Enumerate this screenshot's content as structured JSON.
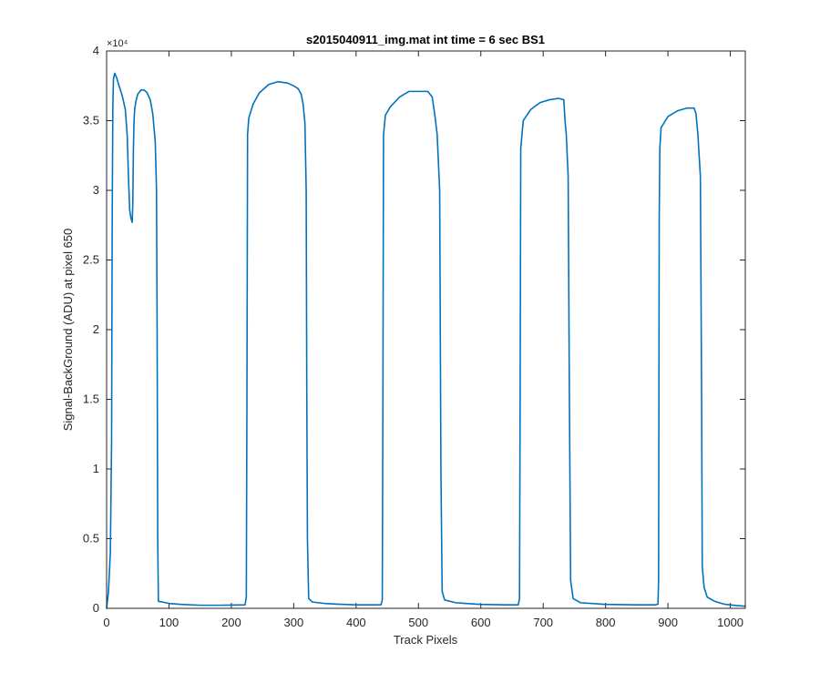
{
  "chart_data": {
    "type": "line",
    "title": "s2015040911_img.mat int time = 6 sec   BS1",
    "xlabel": "Track Pixels",
    "ylabel": "Signal-BackGround (ADU) at pixel 650",
    "xlim": [
      0,
      1024
    ],
    "ylim": [
      0,
      40000
    ],
    "x_ticks": [
      0,
      100,
      200,
      300,
      400,
      500,
      600,
      700,
      800,
      900,
      1000
    ],
    "x_tick_labels": [
      "0",
      "100",
      "200",
      "300",
      "400",
      "500",
      "600",
      "700",
      "800",
      "900",
      "1000"
    ],
    "y_ticks": [
      0,
      5000,
      10000,
      15000,
      20000,
      25000,
      30000,
      35000,
      40000
    ],
    "y_tick_labels": [
      "0",
      "0.5",
      "1",
      "1.5",
      "2",
      "2.5",
      "3",
      "3.5",
      "4"
    ],
    "y_exponent_label": "×10⁴",
    "grid": false,
    "line_color": "#0072BD",
    "series": [
      {
        "points": [
          [
            0,
            0
          ],
          [
            3,
            1200
          ],
          [
            6,
            4000
          ],
          [
            8,
            12000
          ],
          [
            9,
            28000
          ],
          [
            10,
            36000
          ],
          [
            11,
            38000
          ],
          [
            13,
            38400
          ],
          [
            16,
            38100
          ],
          [
            20,
            37500
          ],
          [
            25,
            36800
          ],
          [
            30,
            35800
          ],
          [
            33,
            34000
          ],
          [
            35,
            31000
          ],
          [
            37,
            28600
          ],
          [
            39,
            28000
          ],
          [
            41,
            27700
          ],
          [
            42,
            29000
          ],
          [
            43,
            33000
          ],
          [
            44,
            35000
          ],
          [
            45,
            35800
          ],
          [
            47,
            36400
          ],
          [
            50,
            36900
          ],
          [
            55,
            37200
          ],
          [
            60,
            37200
          ],
          [
            65,
            37000
          ],
          [
            70,
            36500
          ],
          [
            74,
            35500
          ],
          [
            78,
            33500
          ],
          [
            80,
            30000
          ],
          [
            81,
            20000
          ],
          [
            82,
            5000
          ],
          [
            83,
            500
          ],
          [
            90,
            450
          ],
          [
            100,
            350
          ],
          [
            120,
            280
          ],
          [
            150,
            220
          ],
          [
            180,
            220
          ],
          [
            200,
            230
          ],
          [
            222,
            250
          ],
          [
            224,
            800
          ],
          [
            225,
            15000
          ],
          [
            226,
            34000
          ],
          [
            228,
            35200
          ],
          [
            235,
            36200
          ],
          [
            245,
            37000
          ],
          [
            260,
            37600
          ],
          [
            275,
            37800
          ],
          [
            290,
            37700
          ],
          [
            300,
            37500
          ],
          [
            307,
            37300
          ],
          [
            312,
            36900
          ],
          [
            315,
            36200
          ],
          [
            318,
            34800
          ],
          [
            320,
            30000
          ],
          [
            321,
            15000
          ],
          [
            322,
            5000
          ],
          [
            324,
            700
          ],
          [
            330,
            450
          ],
          [
            350,
            350
          ],
          [
            370,
            300
          ],
          [
            400,
            250
          ],
          [
            430,
            250
          ],
          [
            440,
            260
          ],
          [
            442,
            600
          ],
          [
            443,
            15000
          ],
          [
            444,
            34000
          ],
          [
            447,
            35400
          ],
          [
            455,
            36000
          ],
          [
            470,
            36700
          ],
          [
            485,
            37100
          ],
          [
            500,
            37100
          ],
          [
            515,
            37100
          ],
          [
            522,
            36700
          ],
          [
            526,
            35500
          ],
          [
            530,
            34000
          ],
          [
            534,
            30000
          ],
          [
            536,
            10000
          ],
          [
            538,
            1200
          ],
          [
            542,
            600
          ],
          [
            560,
            400
          ],
          [
            600,
            280
          ],
          [
            640,
            250
          ],
          [
            660,
            250
          ],
          [
            662,
            700
          ],
          [
            663,
            15000
          ],
          [
            664,
            33000
          ],
          [
            668,
            35000
          ],
          [
            680,
            35800
          ],
          [
            695,
            36300
          ],
          [
            710,
            36500
          ],
          [
            725,
            36600
          ],
          [
            733,
            36500
          ],
          [
            735,
            35000
          ],
          [
            737,
            34000
          ],
          [
            740,
            31000
          ],
          [
            742,
            15000
          ],
          [
            744,
            2000
          ],
          [
            748,
            700
          ],
          [
            760,
            400
          ],
          [
            800,
            280
          ],
          [
            850,
            250
          ],
          [
            880,
            250
          ],
          [
            884,
            300
          ],
          [
            885,
            2000
          ],
          [
            886,
            28000
          ],
          [
            887,
            33000
          ],
          [
            889,
            34500
          ],
          [
            900,
            35300
          ],
          [
            915,
            35700
          ],
          [
            930,
            35900
          ],
          [
            942,
            35900
          ],
          [
            945,
            35500
          ],
          [
            948,
            34000
          ],
          [
            952,
            31000
          ],
          [
            954,
            15000
          ],
          [
            955,
            3000
          ],
          [
            958,
            1500
          ],
          [
            963,
            800
          ],
          [
            975,
            500
          ],
          [
            990,
            300
          ],
          [
            1000,
            250
          ],
          [
            1010,
            200
          ],
          [
            1024,
            150
          ]
        ]
      }
    ]
  }
}
